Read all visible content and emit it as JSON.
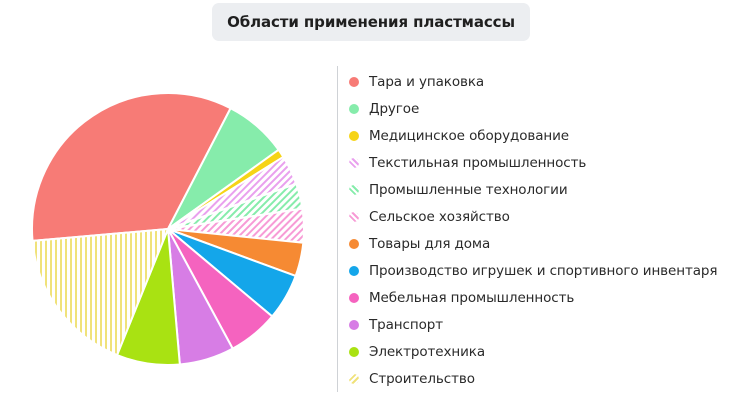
{
  "chart_data": {
    "type": "pie",
    "title": "Области применения пластмассы",
    "legend_position": "right",
    "slices": [
      {
        "label": "Тара и упаковка",
        "value": 34.0,
        "color": "#f77b76",
        "pattern": "solid"
      },
      {
        "label": "Другое",
        "value": 7.5,
        "color": "#86ecab",
        "pattern": "solid"
      },
      {
        "label": "Медицинское оборудование",
        "value": 1.0,
        "color": "#f6d417",
        "pattern": "solid"
      },
      {
        "label": "Текстильная промышленность",
        "value": 3.5,
        "color": "#e9a0ee",
        "pattern": "diagonal-hatch"
      },
      {
        "label": "Промышленные технологии",
        "value": 3.0,
        "color": "#86ecab",
        "pattern": "diagonal-hatch"
      },
      {
        "label": "Сельское хозяйство",
        "value": 4.0,
        "color": "#f79bd6",
        "pattern": "diagonal-hatch"
      },
      {
        "label": "Товары для дома",
        "value": 4.0,
        "color": "#f68a33",
        "pattern": "solid"
      },
      {
        "label": "Производство игрушек и спортивного инвентаря",
        "value": 5.5,
        "color": "#14a6ea",
        "pattern": "solid"
      },
      {
        "label": "Мебельная промышленность",
        "value": 6.0,
        "color": "#f563bf",
        "pattern": "solid"
      },
      {
        "label": "Транспорт",
        "value": 6.5,
        "color": "#d77de5",
        "pattern": "solid"
      },
      {
        "label": "Электротехника",
        "value": 7.5,
        "color": "#a9e212",
        "pattern": "solid"
      },
      {
        "label": "Строительство",
        "value": 17.5,
        "color": "#f0e27a",
        "pattern": "vertical-hatch"
      }
    ]
  }
}
